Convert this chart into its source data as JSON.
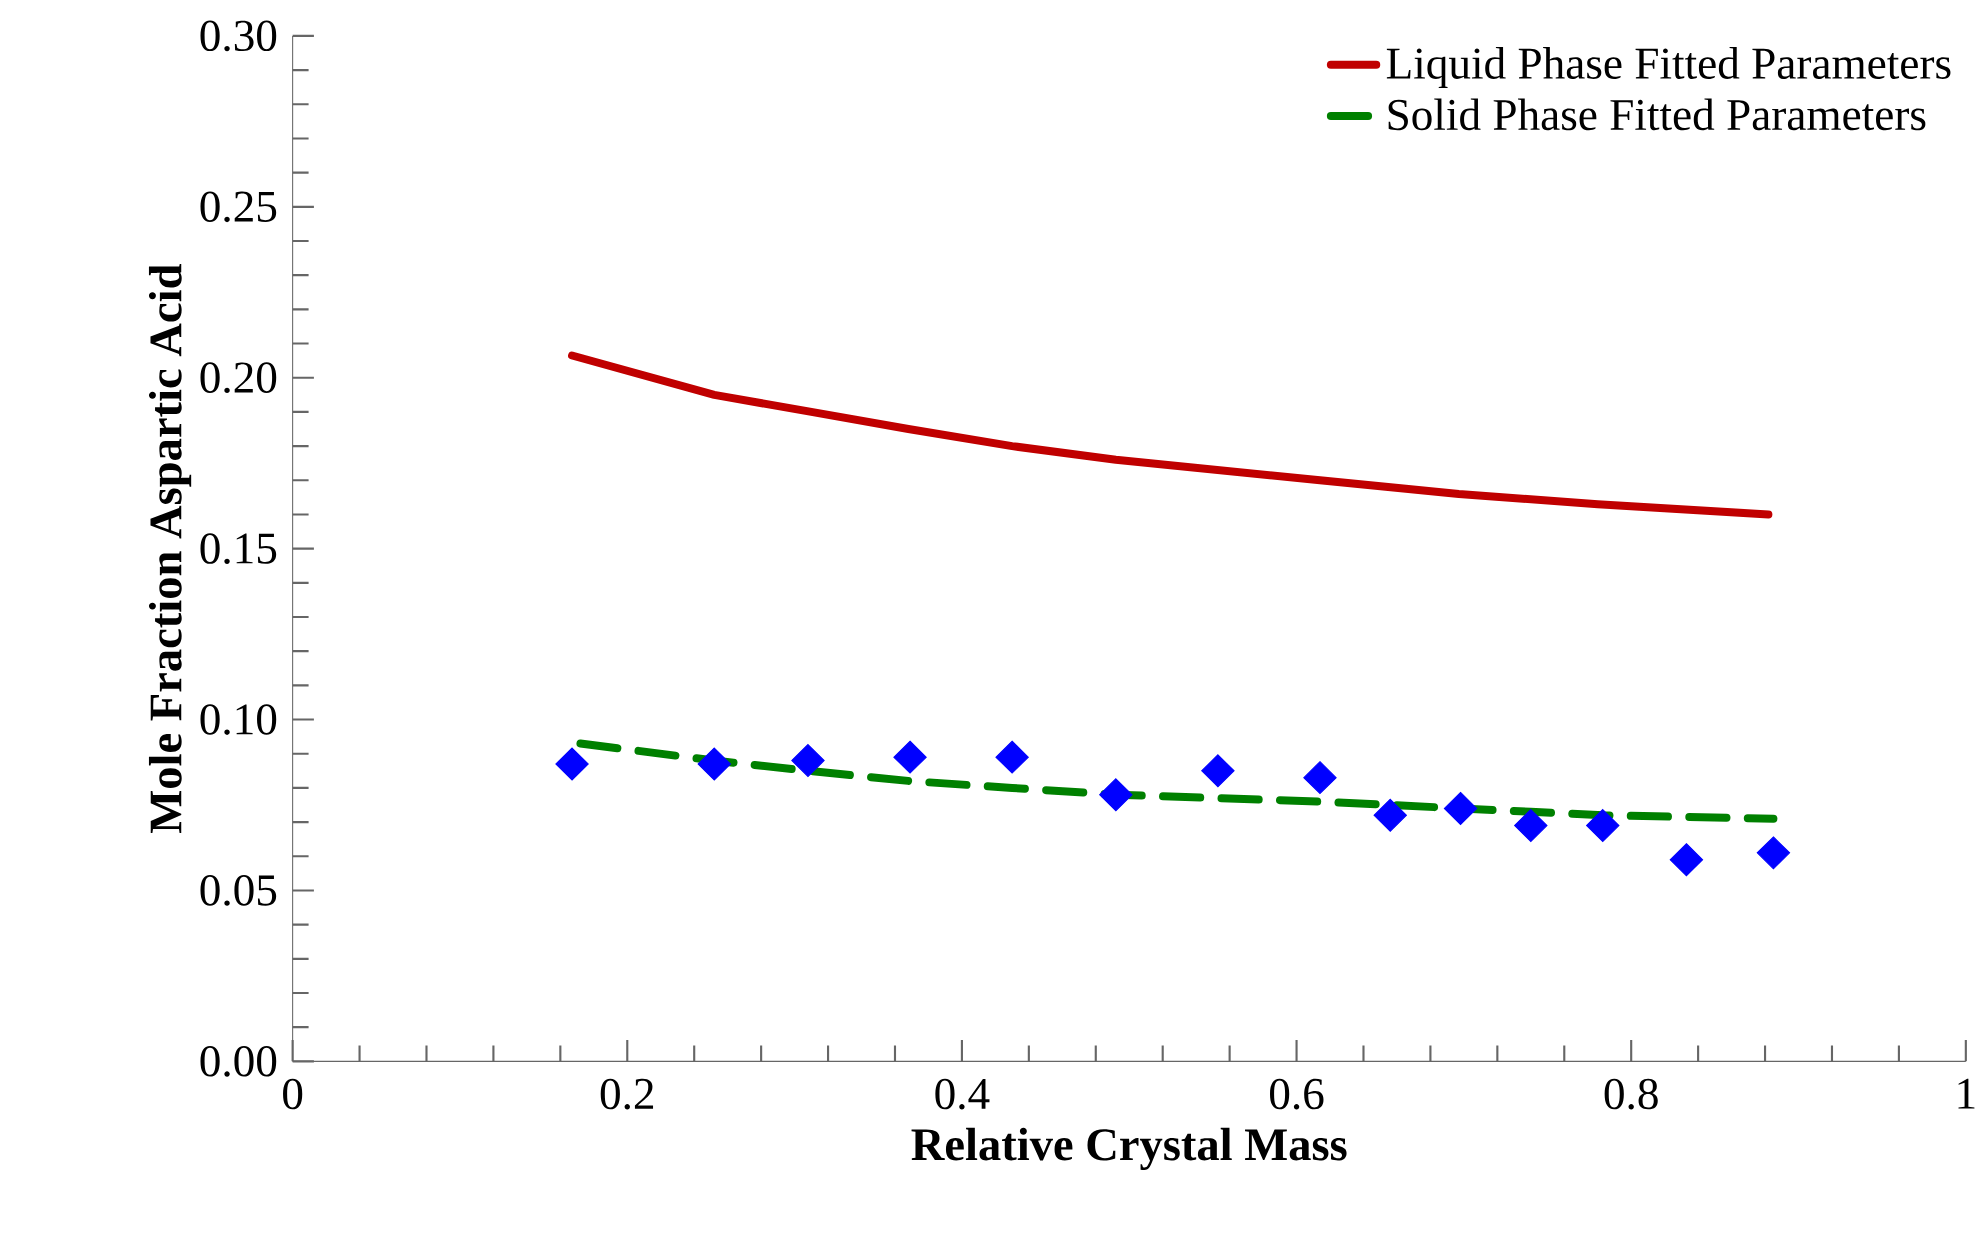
{
  "chart_data": {
    "type": "line",
    "xlabel": "Relative Crystal Mass",
    "ylabel": "Mole Fraction Aspartic Acid",
    "xlim": [
      0,
      1
    ],
    "xticks": [
      0,
      0.2,
      0.4,
      0.6,
      0.8,
      1
    ],
    "ylim": [
      0,
      0.3
    ],
    "yticks": [
      {
        "value": 0,
        "label": "0.00"
      },
      {
        "value": 0.05,
        "label": "0.05"
      },
      {
        "value": 0.1,
        "label": "0.10"
      },
      {
        "value": 0.15,
        "label": "0.15"
      },
      {
        "value": 0.2,
        "label": "0.20"
      },
      {
        "value": 0.25,
        "label": "0.25"
      },
      {
        "value": 0.3,
        "label": "0.30"
      }
    ],
    "grid": false,
    "legend": "top right",
    "series": [
      {
        "name": "Liquid Phase Fitted Parameters",
        "color": "#c00000",
        "line_style": "solid",
        "marker": "none",
        "x": [
          0.167,
          0.252,
          0.31,
          0.368,
          0.43,
          0.492,
          0.553,
          0.614,
          0.697,
          0.78,
          0.882
        ],
        "values": [
          0.2065,
          0.195,
          0.19,
          0.185,
          0.18,
          0.176,
          0.173,
          0.17,
          0.166,
          0.163,
          0.16
        ]
      },
      {
        "name": "Solid Phase Fitted Parameters",
        "color": "#008000",
        "line_style": "dashed",
        "marker": "none",
        "x": [
          0.172,
          0.252,
          0.308,
          0.369,
          0.43,
          0.492,
          0.553,
          0.614,
          0.656,
          0.698,
          0.74,
          0.783,
          0.833,
          0.885
        ],
        "values": [
          0.093,
          0.088,
          0.085,
          0.082,
          0.08,
          0.078,
          0.077,
          0.076,
          0.075,
          0.074,
          0.073,
          0.072,
          0.0715,
          0.071
        ]
      },
      {
        "type": "scatter",
        "color": "#0000ff",
        "marker": "diamond",
        "x": [
          0.167,
          0.252,
          0.308,
          0.369,
          0.43,
          0.492,
          0.553,
          0.614,
          0.656,
          0.698,
          0.74,
          0.783,
          0.833,
          0.885
        ],
        "values": [
          0.087,
          0.087,
          0.088,
          0.089,
          0.089,
          0.078,
          0.085,
          0.083,
          0.072,
          0.074,
          0.069,
          0.069,
          0.059,
          0.061
        ]
      }
    ]
  }
}
